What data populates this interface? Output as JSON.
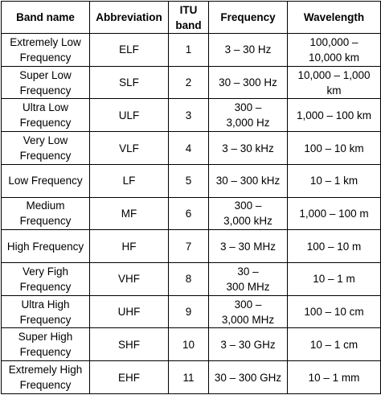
{
  "headers": {
    "band_name": "Band name",
    "abbreviation": "Abbreviation",
    "itu_band": "ITU\nband",
    "frequency": "Frequency",
    "wavelength": "Wavelength"
  },
  "rows": [
    {
      "name": "Extremely Low\nFrequency",
      "abbr": "ELF",
      "itu": "1",
      "freq": "3 – 30 Hz",
      "wave": "100,000 –\n10,000 km"
    },
    {
      "name": "Super Low\nFrequency",
      "abbr": "SLF",
      "itu": "2",
      "freq": "30 – 300 Hz",
      "wave": "10,000 – 1,000 km"
    },
    {
      "name": "Ultra Low\nFrequency",
      "abbr": "ULF",
      "itu": "3",
      "freq": "300 –\n3,000 Hz",
      "wave": "1,000 – 100 km"
    },
    {
      "name": "Very Low\nFrequency",
      "abbr": "VLF",
      "itu": "4",
      "freq": "3 – 30 kHz",
      "wave": "100 – 10 km"
    },
    {
      "name": "Low Frequency",
      "abbr": "LF",
      "itu": "5",
      "freq": "30 – 300 kHz",
      "wave": "10 – 1 km"
    },
    {
      "name": "Medium\nFrequency",
      "abbr": "MF",
      "itu": "6",
      "freq": "300 –\n3,000 kHz",
      "wave": "1,000 – 100 m"
    },
    {
      "name": "High Frequency",
      "abbr": "HF",
      "itu": "7",
      "freq": "3 – 30 MHz",
      "wave": "100 – 10 m"
    },
    {
      "name": "Very Figh\nFrequency",
      "abbr": "VHF",
      "itu": "8",
      "freq": "30 –\n300 MHz",
      "wave": "10 – 1 m"
    },
    {
      "name": "Ultra High\nFrequency",
      "abbr": "UHF",
      "itu": "9",
      "freq": "300 –\n3,000 MHz",
      "wave": "100 – 10 cm"
    },
    {
      "name": "Super High\nFrequency",
      "abbr": "SHF",
      "itu": "10",
      "freq": "3 – 30 GHz",
      "wave": "10 – 1 cm"
    },
    {
      "name": "Extremely High\nFrequency",
      "abbr": "EHF",
      "itu": "11",
      "freq": "30 – 300 GHz",
      "wave": "10 – 1 mm"
    }
  ]
}
